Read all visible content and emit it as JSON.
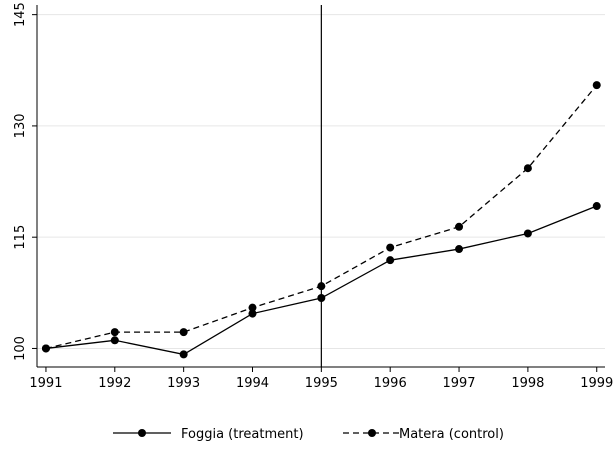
{
  "chart_data": {
    "type": "line",
    "x": [
      1991,
      1992,
      1993,
      1994,
      1995,
      1996,
      1997,
      1998,
      1999
    ],
    "series": [
      {
        "name": "Foggia (treatment)",
        "color": "#000000",
        "dash": "solid",
        "values": [
          100,
          101.1,
          99.2,
          104.7,
          106.8,
          111.9,
          113.4,
          115.5,
          119.2
        ]
      },
      {
        "name": "Matera (control)",
        "color": "#000000",
        "dash": "dashed",
        "values": [
          100,
          102.2,
          102.2,
          105.5,
          108.4,
          113.6,
          116.4,
          124.3,
          135.5
        ]
      }
    ],
    "xlim": [
      1990.87,
      1999.12
    ],
    "xticks": [
      1991,
      1992,
      1993,
      1994,
      1995,
      1996,
      1997,
      1998,
      1999
    ],
    "ylim": [
      97.5,
      146.3
    ],
    "yticks": [
      100,
      115,
      130,
      145
    ],
    "grid": true,
    "vline": 1995,
    "legend": "bottom"
  }
}
